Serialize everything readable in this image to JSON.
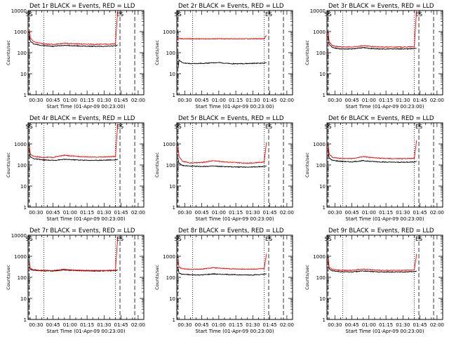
{
  "figure": {
    "panel_title_suffix": "BLACK = Events, RED = LLD",
    "xlabel": "Start Time (01-Apr-09 00:23:00)",
    "ylabel": "Counts/sec",
    "marker_labels": [
      "SS",
      "ES"
    ]
  },
  "colors": {
    "events": "#000000",
    "lld": "#ff0000",
    "axis": "#000000"
  },
  "chart_data": [
    {
      "type": "line",
      "title": "Det 1r BLACK = Events, RED = LLD",
      "detector": "Det 1r",
      "xlabel": "Start Time (01-Apr-09 00:23:00)",
      "ylabel": "Counts/sec",
      "yscale": "log",
      "ylim": [
        1,
        10000
      ],
      "ytick_labels": [
        "1",
        "10",
        "100",
        "1000",
        "10000"
      ],
      "xlim": [
        "00:23",
        "02:05"
      ],
      "xtick_labels": [
        "00:30",
        "00:45",
        "01:00",
        "01:15",
        "01:30",
        "01:45",
        "02:00"
      ],
      "x_times": [
        "00:24",
        "00:25",
        "00:28",
        "00:35",
        "00:45",
        "00:55",
        "01:00",
        "01:10",
        "01:20",
        "01:30",
        "01:40",
        "01:42"
      ],
      "series": [
        {
          "name": "Events",
          "values": [
            700,
            350,
            260,
            220,
            200,
            225,
            215,
            205,
            200,
            200,
            210,
            230
          ]
        },
        {
          "name": "LLD",
          "values": [
            1300,
            500,
            330,
            270,
            245,
            280,
            270,
            255,
            250,
            250,
            260,
            11000
          ]
        }
      ],
      "dotted_lines": [
        "00:37",
        "01:40"
      ],
      "dashed_lines": [
        "00:24",
        "01:44",
        "01:57"
      ]
    },
    {
      "type": "line",
      "title": "Det 2r BLACK = Events, RED = LLD",
      "detector": "Det 2r",
      "xlabel": "Start Time (01-Apr-09 00:23:00)",
      "ylabel": "Counts/sec",
      "yscale": "log",
      "ylim": [
        1,
        10000
      ],
      "ytick_labels": [
        "1",
        "10",
        "100",
        "1000"
      ],
      "xlim": [
        "00:23",
        "02:05"
      ],
      "xtick_labels": [
        "00:30",
        "00:45",
        "01:00",
        "01:15",
        "01:30",
        "01:45",
        "02:00"
      ],
      "x_times": [
        "00:24",
        "00:25",
        "00:28",
        "00:35",
        "00:45",
        "00:55",
        "01:00",
        "01:10",
        "01:20",
        "01:30",
        "01:40",
        "01:42"
      ],
      "series": [
        {
          "name": "Events",
          "values": [
            18,
            45,
            33,
            30,
            31,
            33,
            34,
            30,
            30,
            31,
            32,
            33
          ]
        },
        {
          "name": "LLD",
          "values": [
            500,
            470,
            460,
            455,
            450,
            455,
            460,
            455,
            450,
            455,
            460,
            650
          ]
        }
      ],
      "dotted_lines": [
        "00:37",
        "01:40"
      ],
      "dashed_lines": [
        "00:24",
        "01:44",
        "01:57"
      ]
    },
    {
      "type": "line",
      "title": "Det 3r BLACK = Events, RED = LLD",
      "detector": "Det 3r",
      "xlabel": "Start Time (01-Apr-09 00:23:00)",
      "ylabel": "Counts/sec",
      "yscale": "log",
      "ylim": [
        1,
        10000
      ],
      "ytick_labels": [
        "1",
        "10",
        "100",
        "1000",
        "10000"
      ],
      "xlim": [
        "00:23",
        "02:05"
      ],
      "xtick_labels": [
        "00:30",
        "00:45",
        "01:00",
        "01:15",
        "01:30",
        "01:45",
        "02:00"
      ],
      "x_times": [
        "00:24",
        "00:25",
        "00:28",
        "00:35",
        "00:45",
        "00:55",
        "01:00",
        "01:10",
        "01:20",
        "01:30",
        "01:40",
        "01:42"
      ],
      "series": [
        {
          "name": "Events",
          "values": [
            600,
            250,
            175,
            150,
            150,
            175,
            160,
            150,
            150,
            150,
            155,
            160
          ]
        },
        {
          "name": "LLD",
          "values": [
            900,
            320,
            215,
            185,
            185,
            215,
            200,
            185,
            185,
            185,
            190,
            12000
          ]
        }
      ],
      "dotted_lines": [
        "00:37",
        "01:40"
      ],
      "dashed_lines": [
        "00:24",
        "01:44",
        "01:57"
      ]
    },
    {
      "type": "line",
      "title": "Det 4r BLACK = Events, RED = LLD",
      "detector": "Det 4r",
      "xlabel": "Start Time (01-Apr-09 00:23:00)",
      "ylabel": "Counts/sec",
      "yscale": "log",
      "ylim": [
        1,
        10000
      ],
      "ytick_labels": [
        "1",
        "10",
        "100",
        "1000"
      ],
      "xlim": [
        "00:23",
        "02:05"
      ],
      "xtick_labels": [
        "00:30",
        "00:45",
        "01:00",
        "01:15",
        "01:30",
        "01:45",
        "02:00"
      ],
      "x_times": [
        "00:24",
        "00:25",
        "00:28",
        "00:35",
        "00:45",
        "00:55",
        "01:00",
        "01:10",
        "01:20",
        "01:30",
        "01:40",
        "01:42"
      ],
      "series": [
        {
          "name": "Events",
          "values": [
            500,
            240,
            200,
            175,
            165,
            185,
            180,
            170,
            165,
            170,
            175,
            185
          ]
        },
        {
          "name": "LLD",
          "values": [
            800,
            320,
            260,
            230,
            230,
            290,
            270,
            250,
            235,
            240,
            250,
            9000
          ]
        }
      ],
      "dotted_lines": [
        "00:37",
        "01:40"
      ],
      "dashed_lines": [
        "00:24",
        "01:44",
        "01:57"
      ]
    },
    {
      "type": "line",
      "title": "Det 5r BLACK = Events, RED = LLD",
      "detector": "Det 5r",
      "xlabel": "Start Time (01-Apr-09 00:23:00)",
      "ylabel": "Counts/sec",
      "yscale": "log",
      "ylim": [
        1,
        10000
      ],
      "ytick_labels": [
        "1",
        "10",
        "100",
        "1000"
      ],
      "xlim": [
        "00:23",
        "02:05"
      ],
      "xtick_labels": [
        "00:30",
        "00:45",
        "01:00",
        "01:15",
        "01:30",
        "01:45",
        "02:00"
      ],
      "x_times": [
        "00:24",
        "00:25",
        "00:28",
        "00:35",
        "00:45",
        "00:55",
        "01:00",
        "01:10",
        "01:20",
        "01:30",
        "01:40",
        "01:42"
      ],
      "series": [
        {
          "name": "Events",
          "values": [
            200,
            120,
            95,
            88,
            85,
            88,
            86,
            82,
            80,
            80,
            85,
            90
          ]
        },
        {
          "name": "LLD",
          "values": [
            700,
            250,
            150,
            125,
            130,
            160,
            150,
            135,
            125,
            125,
            140,
            1200
          ]
        }
      ],
      "dotted_lines": [
        "00:37",
        "01:40"
      ],
      "dashed_lines": [
        "00:24",
        "01:44",
        "01:57"
      ]
    },
    {
      "type": "line",
      "title": "Det 6r BLACK = Events, RED = LLD",
      "detector": "Det 6r",
      "xlabel": "Start Time (01-Apr-09 00:23:00)",
      "ylabel": "Counts/sec",
      "yscale": "log",
      "ylim": [
        1,
        10000
      ],
      "ytick_labels": [
        "1",
        "10",
        "100",
        "1000"
      ],
      "xlim": [
        "00:23",
        "02:05"
      ],
      "xtick_labels": [
        "00:30",
        "00:45",
        "01:00",
        "01:15",
        "01:30",
        "01:45",
        "02:00"
      ],
      "x_times": [
        "00:24",
        "00:25",
        "00:28",
        "00:35",
        "00:45",
        "00:55",
        "01:00",
        "01:10",
        "01:20",
        "01:30",
        "01:40",
        "01:42"
      ],
      "series": [
        {
          "name": "Events",
          "values": [
            500,
            210,
            165,
            150,
            140,
            160,
            150,
            140,
            135,
            135,
            140,
            150
          ]
        },
        {
          "name": "LLD",
          "values": [
            900,
            320,
            230,
            205,
            200,
            250,
            230,
            210,
            200,
            200,
            210,
            1500
          ]
        }
      ],
      "dotted_lines": [
        "00:37",
        "01:40"
      ],
      "dashed_lines": [
        "00:24",
        "01:44",
        "01:57"
      ]
    },
    {
      "type": "line",
      "title": "Det 7r BLACK = Events, RED = LLD",
      "detector": "Det 7r",
      "xlabel": "Start Time (01-Apr-09 00:23:00)",
      "ylabel": "Counts/sec",
      "yscale": "log",
      "ylim": [
        1,
        10000
      ],
      "ytick_labels": [
        "1",
        "10",
        "100",
        "1000",
        "10000"
      ],
      "xlim": [
        "00:23",
        "02:05"
      ],
      "xtick_labels": [
        "00:30",
        "00:45",
        "01:00",
        "01:15",
        "01:30",
        "01:45",
        "02:00"
      ],
      "x_times": [
        "00:24",
        "00:25",
        "00:28",
        "00:35",
        "00:45",
        "00:55",
        "01:00",
        "01:10",
        "01:20",
        "01:30",
        "01:40",
        "01:42"
      ],
      "series": [
        {
          "name": "Events",
          "values": [
            450,
            240,
            215,
            205,
            200,
            225,
            215,
            205,
            200,
            200,
            210,
            220
          ]
        },
        {
          "name": "LLD",
          "values": [
            550,
            260,
            230,
            215,
            210,
            240,
            225,
            215,
            210,
            210,
            220,
            8000
          ]
        }
      ],
      "dotted_lines": [
        "00:37",
        "01:40"
      ],
      "dashed_lines": [
        "00:24",
        "01:44",
        "01:57"
      ]
    },
    {
      "type": "line",
      "title": "Det 8r BLACK = Events, RED = LLD",
      "detector": "Det 8r",
      "xlabel": "Start Time (01-Apr-09 00:23:00)",
      "ylabel": "Counts/sec",
      "yscale": "log",
      "ylim": [
        1,
        10000
      ],
      "ytick_labels": [
        "1",
        "10",
        "100",
        "1000"
      ],
      "xlim": [
        "00:23",
        "02:05"
      ],
      "xtick_labels": [
        "00:30",
        "00:45",
        "01:00",
        "01:15",
        "01:30",
        "01:45",
        "02:00"
      ],
      "x_times": [
        "00:24",
        "00:25",
        "00:28",
        "00:35",
        "00:45",
        "00:55",
        "01:00",
        "01:10",
        "01:20",
        "01:30",
        "01:40",
        "01:42"
      ],
      "series": [
        {
          "name": "Events",
          "values": [
            300,
            155,
            140,
            132,
            130,
            145,
            140,
            135,
            130,
            130,
            138,
            145
          ]
        },
        {
          "name": "LLD",
          "values": [
            700,
            300,
            255,
            240,
            245,
            285,
            270,
            255,
            245,
            245,
            260,
            1300
          ]
        }
      ],
      "dotted_lines": [
        "00:37",
        "01:40"
      ],
      "dashed_lines": [
        "00:24",
        "01:44",
        "01:57"
      ]
    },
    {
      "type": "line",
      "title": "Det 9r BLACK = Events, RED = LLD",
      "detector": "Det 9r",
      "xlabel": "Start Time (01-Apr-09 00:23:00)",
      "ylabel": "Counts/sec",
      "yscale": "log",
      "ylim": [
        1,
        10000
      ],
      "ytick_labels": [
        "1",
        "10",
        "100",
        "1000"
      ],
      "xlim": [
        "00:23",
        "02:05"
      ],
      "xtick_labels": [
        "00:30",
        "00:45",
        "01:00",
        "01:15",
        "01:30",
        "01:45",
        "02:00"
      ],
      "x_times": [
        "00:24",
        "00:25",
        "00:28",
        "00:35",
        "00:45",
        "00:55",
        "01:00",
        "01:10",
        "01:20",
        "01:30",
        "01:40",
        "01:42"
      ],
      "series": [
        {
          "name": "Events",
          "values": [
            600,
            250,
            200,
            185,
            180,
            200,
            190,
            180,
            180,
            180,
            185,
            195
          ]
        },
        {
          "name": "LLD",
          "values": [
            800,
            300,
            240,
            215,
            215,
            245,
            230,
            215,
            215,
            215,
            225,
            1300
          ]
        }
      ],
      "dotted_lines": [
        "00:37",
        "01:40"
      ],
      "dashed_lines": [
        "00:24",
        "01:44",
        "01:57"
      ]
    }
  ]
}
